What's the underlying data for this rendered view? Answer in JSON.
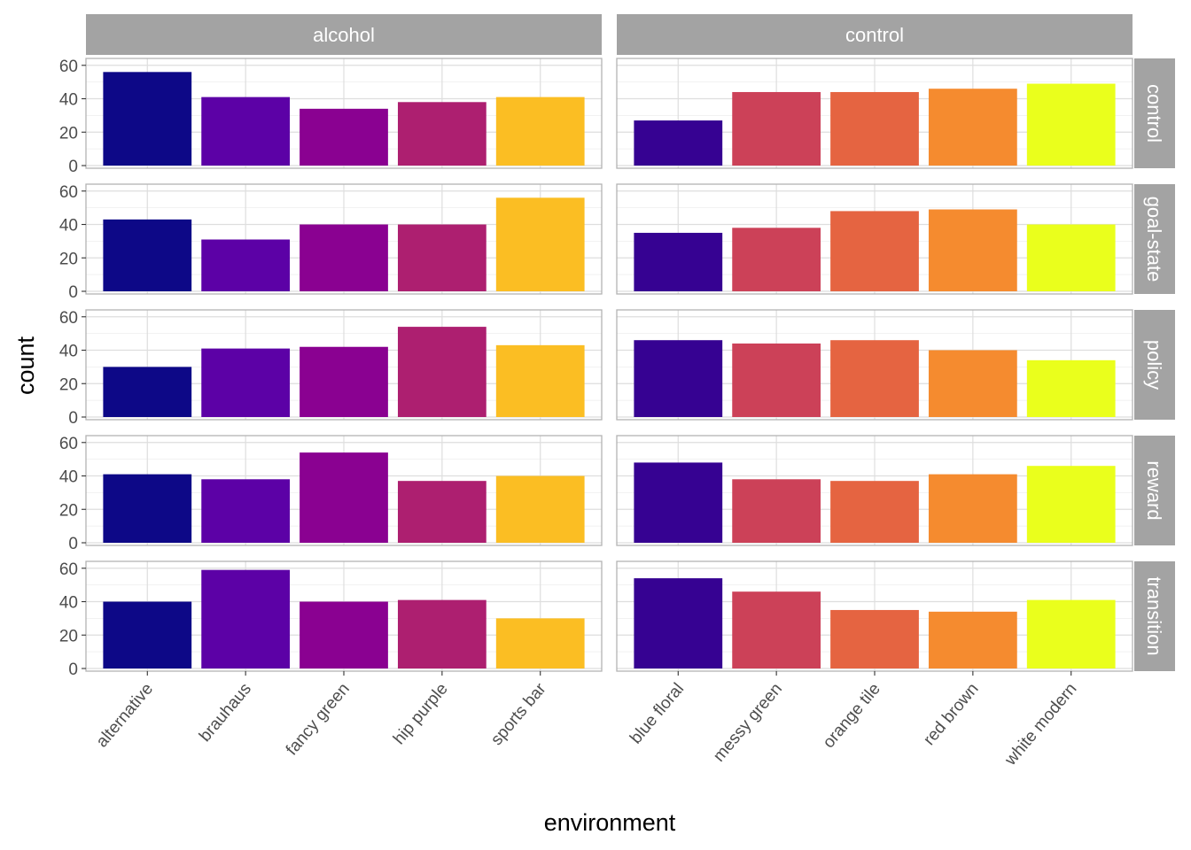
{
  "chart_data": {
    "type": "bar",
    "title": "",
    "xlabel": "environment",
    "ylabel": "count",
    "ylim": [
      0,
      62
    ],
    "yticks": [
      0,
      20,
      40,
      60
    ],
    "grid": true,
    "legend": "none",
    "facet_cols": [
      {
        "label": "alcohol",
        "categories": [
          "alternative",
          "brauhaus",
          "fancy green",
          "hip purple",
          "sports bar"
        ],
        "colors": [
          "#0d0887",
          "#5c01a6",
          "#8a0191",
          "#ad1f70",
          "#fbbe23"
        ]
      },
      {
        "label": "control",
        "categories": [
          "blue floral",
          "messy green",
          "orange tile",
          "red brown",
          "white modern"
        ],
        "colors": [
          "#360292",
          "#cc4158",
          "#e56441",
          "#f58b2f",
          "#eaff1c"
        ]
      }
    ],
    "facet_rows": [
      "control",
      "goal-state",
      "policy",
      "reward",
      "transition"
    ],
    "values": {
      "alcohol": {
        "control": [
          56,
          41,
          34,
          38,
          41
        ],
        "goal-state": [
          43,
          31,
          40,
          40,
          56
        ],
        "policy": [
          30,
          41,
          42,
          54,
          43
        ],
        "reward": [
          41,
          38,
          54,
          37,
          40
        ],
        "transition": [
          40,
          59,
          40,
          41,
          30
        ]
      },
      "control": {
        "control": [
          27,
          44,
          44,
          46,
          49
        ],
        "goal-state": [
          35,
          38,
          48,
          49,
          40
        ],
        "policy": [
          46,
          44,
          46,
          40,
          34
        ],
        "reward": [
          48,
          38,
          37,
          41,
          46
        ],
        "transition": [
          54,
          46,
          35,
          34,
          41
        ]
      }
    }
  }
}
